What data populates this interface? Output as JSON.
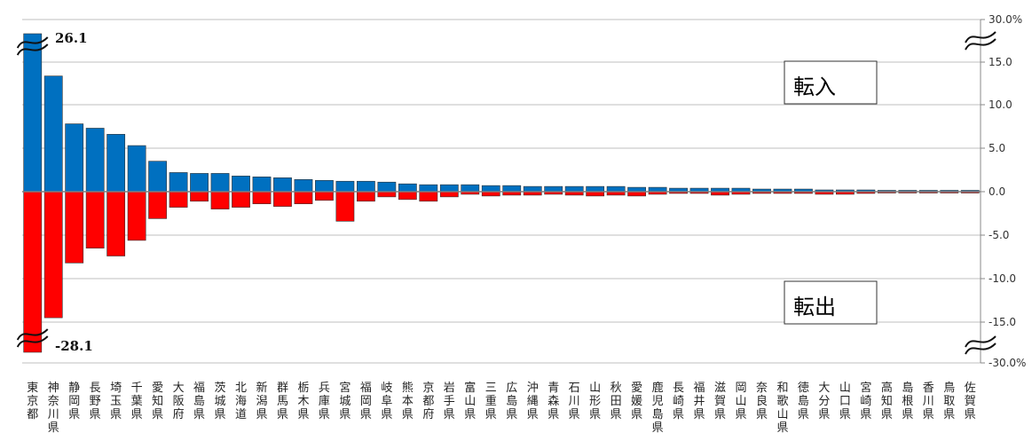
{
  "chart_data": {
    "type": "bar",
    "categories": [
      "東京都",
      "神奈川県",
      "静岡県",
      "長野県",
      "埼玉県",
      "千葉県",
      "愛知県",
      "大阪府",
      "福島県",
      "茨城県",
      "北海道",
      "新潟県",
      "群馬県",
      "栃木県",
      "兵庫県",
      "宮城県",
      "福岡県",
      "岐阜県",
      "熊本県",
      "京都府",
      "岩手県",
      "富山県",
      "三重県",
      "広島県",
      "沖縄県",
      "青森県",
      "石川県",
      "山形県",
      "秋田県",
      "愛媛県",
      "鹿児島県",
      "長崎県",
      "福井県",
      "滋賀県",
      "岡山県",
      "奈良県",
      "和歌山県",
      "徳島県",
      "大分県",
      "山口県",
      "宮崎県",
      "高知県",
      "島根県",
      "香川県",
      "鳥取県",
      "佐賀県"
    ],
    "series": [
      {
        "name": "転入",
        "color": "#0070c0",
        "values": [
          26.1,
          13.3,
          7.8,
          7.3,
          6.6,
          5.3,
          3.5,
          2.2,
          2.1,
          2.1,
          1.8,
          1.7,
          1.6,
          1.4,
          1.3,
          1.2,
          1.2,
          1.1,
          0.9,
          0.8,
          0.8,
          0.8,
          0.7,
          0.7,
          0.6,
          0.6,
          0.6,
          0.6,
          0.6,
          0.5,
          0.5,
          0.4,
          0.4,
          0.4,
          0.4,
          0.3,
          0.3,
          0.3,
          0.2,
          0.2,
          0.2,
          0.1,
          0.1,
          0.1,
          0.1,
          0.1
        ]
      },
      {
        "name": "転出",
        "color": "#ff0000",
        "values": [
          -28.1,
          -14.5,
          -8.2,
          -6.5,
          -7.4,
          -5.6,
          -3.1,
          -1.8,
          -1.1,
          -2.0,
          -1.8,
          -1.4,
          -1.7,
          -1.4,
          -1.0,
          -3.4,
          -1.1,
          -0.6,
          -0.9,
          -1.1,
          -0.6,
          -0.3,
          -0.5,
          -0.4,
          -0.4,
          -0.3,
          -0.4,
          -0.5,
          -0.4,
          -0.5,
          -0.3,
          -0.2,
          -0.2,
          -0.4,
          -0.3,
          -0.2,
          -0.2,
          -0.2,
          -0.3,
          -0.3,
          -0.2,
          -0.1,
          -0.1,
          -0.1,
          -0.1,
          -0.1
        ]
      }
    ],
    "data_labels": {
      "top": "26.1",
      "bottom": "-28.1"
    },
    "box_labels": {
      "positive": "転入",
      "negative": "転出"
    },
    "y_ticks": [
      "30.0%",
      "15.0",
      "10.0",
      "5.0",
      "0.0",
      "-5.0",
      "-10.0",
      "-15.0",
      "-30.0%"
    ],
    "ylim": [
      -18,
      20
    ],
    "axis_break": true,
    "grid": true,
    "title": "",
    "xlabel": "",
    "ylabel": ""
  }
}
